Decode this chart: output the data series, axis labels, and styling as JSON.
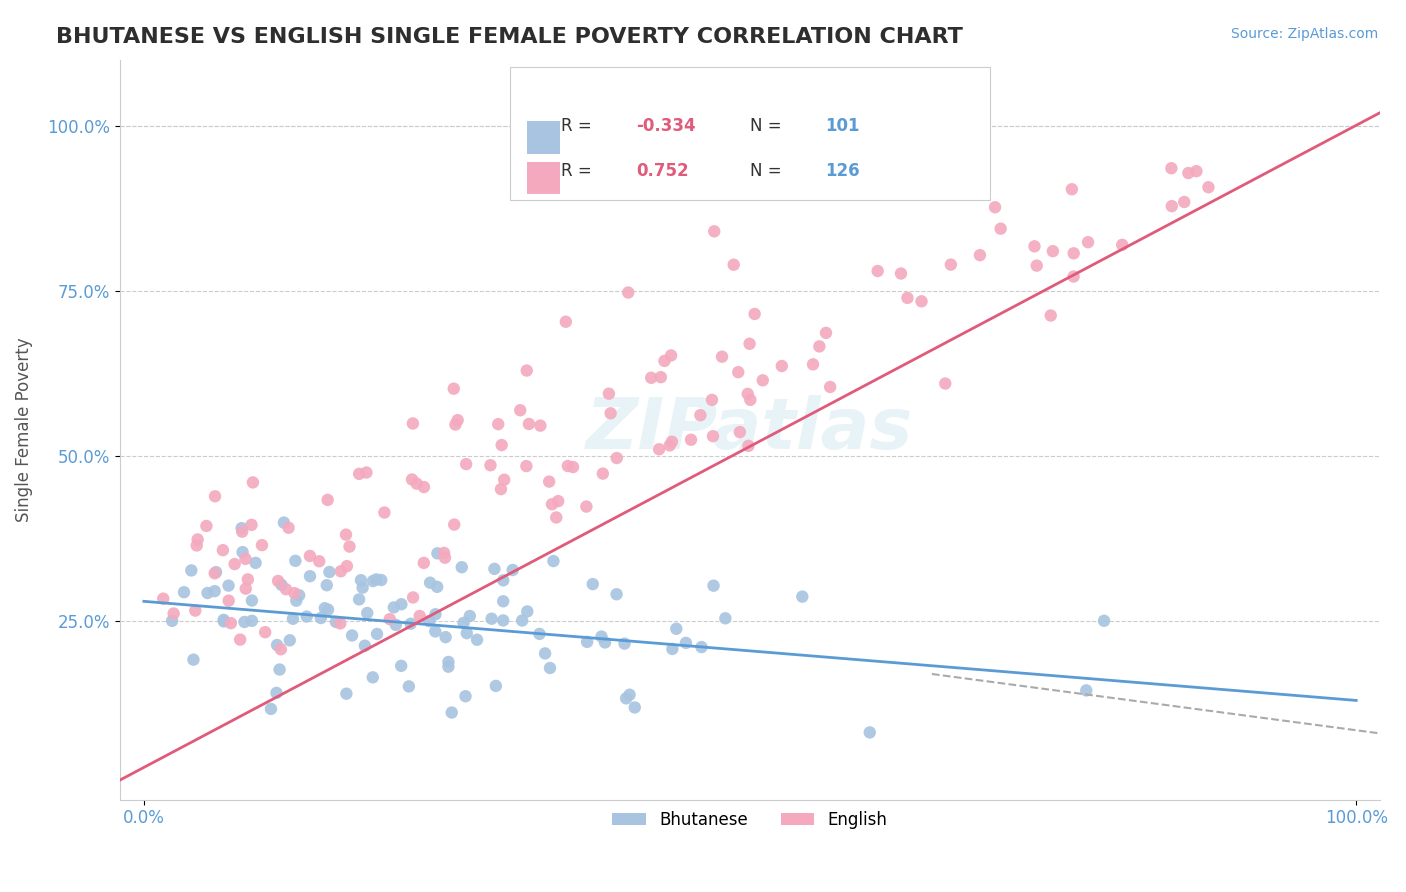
{
  "title": "BHUTANESE VS ENGLISH SINGLE FEMALE POVERTY CORRELATION CHART",
  "source": "Source: ZipAtlas.com",
  "xlabel": "",
  "ylabel": "Single Female Poverty",
  "xlim": [
    0.0,
    1.0
  ],
  "ylim": [
    0.0,
    1.0
  ],
  "xtick_labels": [
    "0.0%",
    "100.0%"
  ],
  "ytick_labels": [
    "25.0%",
    "50.0%",
    "75.0%",
    "100.0%"
  ],
  "blue_R": -0.334,
  "blue_N": 101,
  "pink_R": 0.752,
  "pink_N": 126,
  "blue_color": "#a8c4e0",
  "pink_color": "#f4a9be",
  "blue_line_color": "#5b9bd5",
  "pink_line_color": "#e05a7a",
  "legend_label_blue": "Bhutanese",
  "legend_label_pink": "English",
  "watermark": "ZIPatlas",
  "background_color": "#ffffff",
  "grid_color": "#cccccc",
  "title_color": "#2e2e2e",
  "source_color": "#5b9bd5",
  "R_label_color": "#e05a7a",
  "N_label_color": "#5b9bd5",
  "axis_label_color": "#5b9bd5"
}
